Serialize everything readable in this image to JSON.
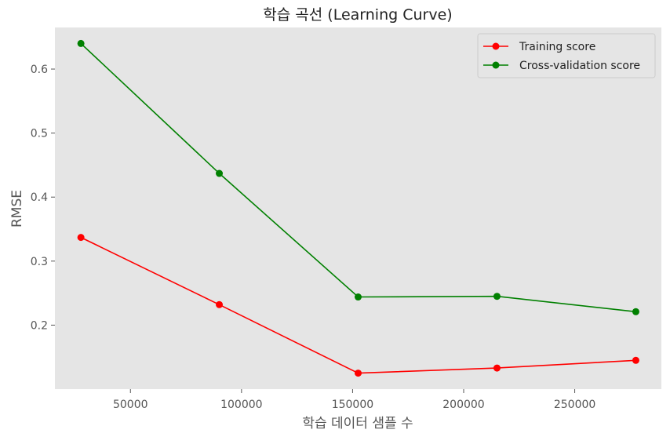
{
  "chart_data": {
    "type": "line",
    "title": "학습 곡선 (Learning Curve)",
    "xlabel": "학습 데이터 샘플 수",
    "ylabel": "RMSE",
    "x": [
      27700,
      90000,
      152500,
      215000,
      277500
    ],
    "xlim": [
      16000,
      289000
    ],
    "ylim": [
      0.1,
      0.665
    ],
    "xticks": [
      50000,
      100000,
      150000,
      200000,
      250000
    ],
    "yticks": [
      0.2,
      0.3,
      0.4,
      0.5,
      0.6
    ],
    "xtick_labels": [
      "50000",
      "100000",
      "150000",
      "200000",
      "250000"
    ],
    "ytick_labels": [
      "0.2",
      "0.3",
      "0.4",
      "0.5",
      "0.6"
    ],
    "grid": false,
    "legend_position": "top-right",
    "background": "#e5e5e5",
    "series": [
      {
        "name": "Training score",
        "color": "#ff0000",
        "values": [
          0.337,
          0.232,
          0.125,
          0.133,
          0.145
        ]
      },
      {
        "name": "Cross-validation score",
        "color": "#008000",
        "values": [
          0.64,
          0.437,
          0.244,
          0.245,
          0.221
        ]
      }
    ]
  }
}
